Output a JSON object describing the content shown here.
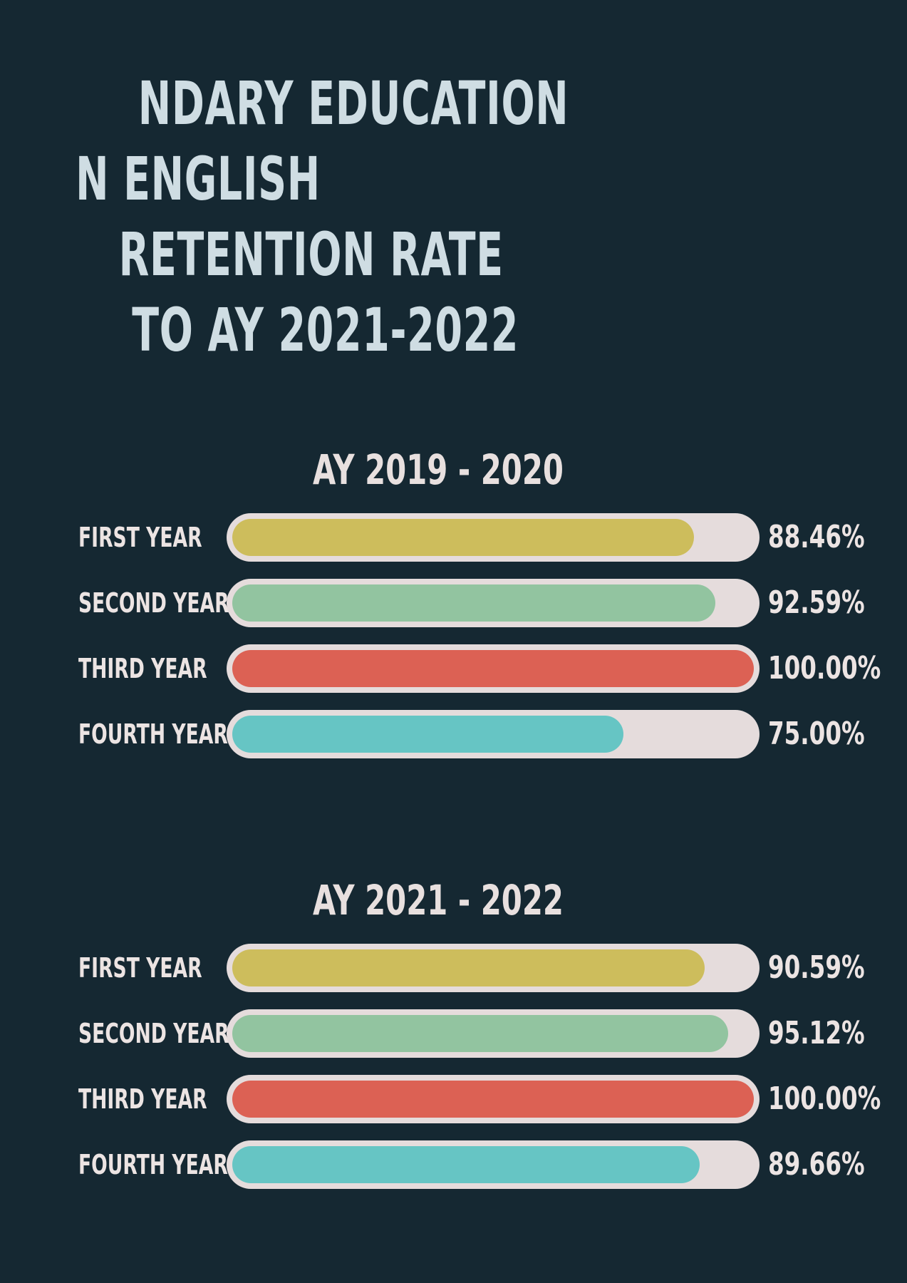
{
  "title_lines": [
    "NDARY EDUCATION",
    "N ENGLISH",
    "RETENTION RATE",
    "TO AY 2021-2022"
  ],
  "colors": {
    "background": "#152832",
    "track": "#e5dcdc",
    "first_year": "#cdbd5c",
    "second_year": "#92c4a0",
    "third_year": "#dc6154",
    "fourth_year": "#66c5c4"
  },
  "chart_data": [
    {
      "type": "bar",
      "orientation": "horizontal",
      "title": "AY 2019 - 2020",
      "categories": [
        "FIRST YEAR",
        "SECOND YEAR",
        "THIRD YEAR",
        "FOURTH YEAR"
      ],
      "values": [
        88.46,
        92.59,
        100.0,
        75.0
      ],
      "value_labels": [
        "88.46%",
        "92.59%",
        "100.00%",
        "75.00%"
      ],
      "xlim": [
        0,
        100
      ],
      "grid": false
    },
    {
      "type": "bar",
      "orientation": "horizontal",
      "title": "AY 2021 - 2022",
      "categories": [
        "FIRST YEAR",
        "SECOND YEAR",
        "THIRD YEAR",
        "FOURTH YEAR"
      ],
      "values": [
        90.59,
        95.12,
        100.0,
        89.66
      ],
      "value_labels": [
        "90.59%",
        "95.12%",
        "100.00%",
        "89.66%"
      ],
      "xlim": [
        0,
        100
      ],
      "grid": false
    }
  ]
}
